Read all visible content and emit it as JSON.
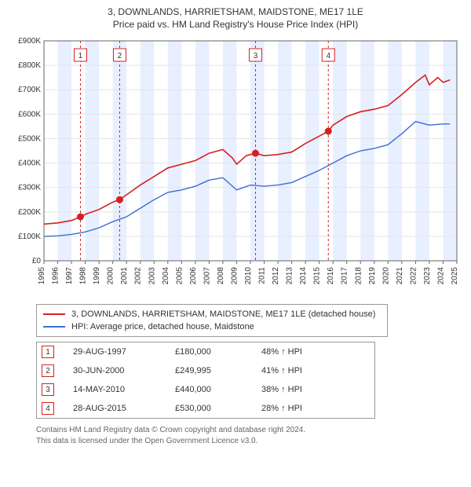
{
  "title_line1": "3, DOWNLANDS, HARRIETSHAM, MAIDSTONE, ME17 1LE",
  "title_line2": "Price paid vs. HM Land Registry's House Price Index (HPI)",
  "chart": {
    "type": "line",
    "background_color": "#ffffff",
    "plot_border_color": "#666666",
    "grid_color": "#e5e5e5",
    "band_color": "#e8efff",
    "xlim": [
      1995,
      2025
    ],
    "ylim": [
      0,
      900000
    ],
    "ytick_step": 100000,
    "yticks": [
      "£0",
      "£100K",
      "£200K",
      "£300K",
      "£400K",
      "£500K",
      "£600K",
      "£700K",
      "£800K",
      "£900K"
    ],
    "xticks": [
      1995,
      1996,
      1997,
      1998,
      1999,
      2000,
      2001,
      2002,
      2003,
      2004,
      2005,
      2006,
      2007,
      2008,
      2009,
      2010,
      2011,
      2012,
      2013,
      2014,
      2015,
      2016,
      2017,
      2018,
      2019,
      2020,
      2021,
      2022,
      2023,
      2024,
      2025
    ],
    "axis_fontsize": 10,
    "axis_color": "#333333",
    "series": [
      {
        "name": "price_paid",
        "label": "3, DOWNLANDS, HARRIETSHAM, MAIDSTONE, ME17 1LE (detached house)",
        "color": "#d62020",
        "line_width": 1.6,
        "data": [
          [
            1995,
            150000
          ],
          [
            1996,
            155000
          ],
          [
            1997,
            165000
          ],
          [
            1997.65,
            180000
          ],
          [
            1998,
            190000
          ],
          [
            1999,
            210000
          ],
          [
            2000,
            240000
          ],
          [
            2000.5,
            249995
          ],
          [
            2001,
            270000
          ],
          [
            2002,
            310000
          ],
          [
            2003,
            345000
          ],
          [
            2004,
            380000
          ],
          [
            2005,
            395000
          ],
          [
            2006,
            410000
          ],
          [
            2007,
            440000
          ],
          [
            2008,
            455000
          ],
          [
            2008.7,
            420000
          ],
          [
            2009,
            395000
          ],
          [
            2009.7,
            430000
          ],
          [
            2010.37,
            440000
          ],
          [
            2011,
            430000
          ],
          [
            2012,
            435000
          ],
          [
            2013,
            445000
          ],
          [
            2014,
            480000
          ],
          [
            2015,
            510000
          ],
          [
            2015.66,
            530000
          ],
          [
            2016,
            555000
          ],
          [
            2017,
            590000
          ],
          [
            2018,
            610000
          ],
          [
            2019,
            620000
          ],
          [
            2020,
            635000
          ],
          [
            2021,
            680000
          ],
          [
            2022,
            730000
          ],
          [
            2022.7,
            760000
          ],
          [
            2023,
            720000
          ],
          [
            2023.6,
            750000
          ],
          [
            2024,
            730000
          ],
          [
            2024.5,
            740000
          ]
        ]
      },
      {
        "name": "hpi",
        "label": "HPI: Average price, detached house, Maidstone",
        "color": "#3b6fd6",
        "line_width": 1.4,
        "data": [
          [
            1995,
            100000
          ],
          [
            1996,
            102000
          ],
          [
            1997,
            108000
          ],
          [
            1998,
            118000
          ],
          [
            1999,
            135000
          ],
          [
            2000,
            160000
          ],
          [
            2001,
            180000
          ],
          [
            2002,
            215000
          ],
          [
            2003,
            250000
          ],
          [
            2004,
            280000
          ],
          [
            2005,
            290000
          ],
          [
            2006,
            305000
          ],
          [
            2007,
            330000
          ],
          [
            2008,
            340000
          ],
          [
            2008.7,
            305000
          ],
          [
            2009,
            290000
          ],
          [
            2010,
            310000
          ],
          [
            2011,
            305000
          ],
          [
            2012,
            310000
          ],
          [
            2013,
            320000
          ],
          [
            2014,
            345000
          ],
          [
            2015,
            370000
          ],
          [
            2016,
            400000
          ],
          [
            2017,
            430000
          ],
          [
            2018,
            450000
          ],
          [
            2019,
            460000
          ],
          [
            2020,
            475000
          ],
          [
            2021,
            520000
          ],
          [
            2022,
            570000
          ],
          [
            2023,
            555000
          ],
          [
            2024,
            560000
          ],
          [
            2024.5,
            560000
          ]
        ]
      }
    ],
    "markers": [
      {
        "n": "1",
        "x": 1997.65,
        "y": 180000,
        "color": "#d62020"
      },
      {
        "n": "2",
        "x": 2000.5,
        "y": 249995,
        "color": "#d62020"
      },
      {
        "n": "3",
        "x": 2010.37,
        "y": 440000,
        "color": "#d62020"
      },
      {
        "n": "4",
        "x": 2015.66,
        "y": 530000,
        "color": "#d62020"
      }
    ],
    "marker_box_border": "#d62020",
    "marker_box_text": "#333333",
    "marker_dash_color": "#d62020"
  },
  "legend": {
    "items": [
      {
        "color": "#d62020",
        "label": "3, DOWNLANDS, HARRIETSHAM, MAIDSTONE, ME17 1LE (detached house)"
      },
      {
        "color": "#3b6fd6",
        "label": "HPI: Average price, detached house, Maidstone"
      }
    ]
  },
  "transactions": [
    {
      "n": "1",
      "date": "29-AUG-1997",
      "price": "£180,000",
      "hpi": "48% ↑ HPI"
    },
    {
      "n": "2",
      "date": "30-JUN-2000",
      "price": "£249,995",
      "hpi": "41% ↑ HPI"
    },
    {
      "n": "3",
      "date": "14-MAY-2010",
      "price": "£440,000",
      "hpi": "38% ↑ HPI"
    },
    {
      "n": "4",
      "date": "28-AUG-2015",
      "price": "£530,000",
      "hpi": "28% ↑ HPI"
    }
  ],
  "tx_num_border": "#d62020",
  "footer_line1": "Contains HM Land Registry data © Crown copyright and database right 2024.",
  "footer_line2": "This data is licensed under the Open Government Licence v3.0."
}
